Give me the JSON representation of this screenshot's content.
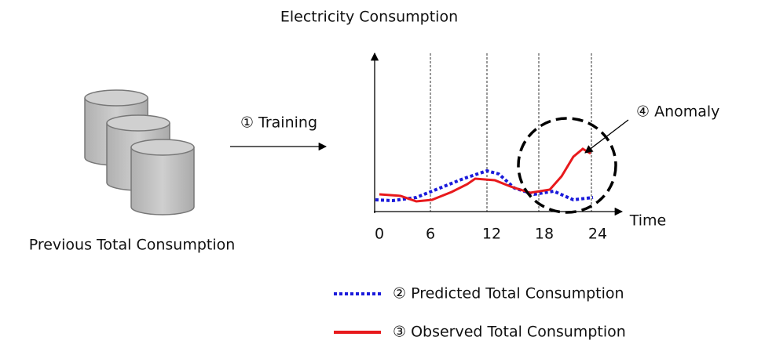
{
  "chart": {
    "title": "Electricity Consumption",
    "xticks": [
      0,
      6,
      12,
      18,
      24
    ],
    "xlabel": "Time",
    "annotation": "④ Anomaly"
  },
  "source": {
    "label": "Previous Total Consumption"
  },
  "arrow": {
    "label": "① Training"
  },
  "legend": {
    "predicted": "② Predicted Total Consumption",
    "observed": "③ Observed Total Consumption"
  }
}
